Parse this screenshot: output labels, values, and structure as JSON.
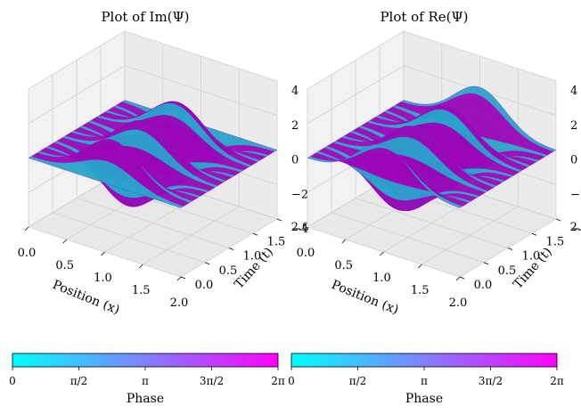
{
  "colors": {
    "colormap_start": "#00ffff",
    "colormap_mid": "#8080ff",
    "colormap_end": "#ff00ff",
    "surface_main": "#9a06b8",
    "surface_edge": "#2aa3cc",
    "pane": "#f2f2f2",
    "grid": "#d0d0d0"
  },
  "plots": [
    {
      "title": "Plot of Im(Ψ)",
      "xlabel": "Position (x)",
      "ylabel": "Time (t)",
      "xticks": [
        "0.0",
        "0.5",
        "1.0",
        "1.5",
        "2.0"
      ],
      "yticks": [
        "0.0",
        "0.5",
        "1.0",
        "1.5",
        "2.0"
      ],
      "zticks": [
        "4",
        "2",
        "0",
        "−2",
        "−4"
      ],
      "colorbar": {
        "label": "Phase",
        "ticks": [
          "0",
          "π/2",
          "π",
          "3π/2",
          "2π"
        ]
      }
    },
    {
      "title": "Plot of Re(Ψ)",
      "xlabel": "Position (x)",
      "ylabel": "Time (t)",
      "xticks": [
        "0.0",
        "0.5",
        "1.0",
        "1.5",
        "2.0"
      ],
      "yticks": [
        "0.0",
        "0.5",
        "1.0",
        "1.5",
        "2.0"
      ],
      "zticks": [
        "4",
        "2",
        "0",
        "−2",
        "−4"
      ],
      "colorbar": {
        "label": "Phase",
        "ticks": [
          "0",
          "π/2",
          "π",
          "3π/2",
          "2π"
        ]
      }
    }
  ],
  "chart_data": [
    {
      "type": "surface3d",
      "title": "Plot of Im(Ψ)",
      "xlabel": "Position (x)",
      "ylabel": "Time (t)",
      "xlim": [
        0,
        2
      ],
      "ylim": [
        0,
        2
      ],
      "zlim": [
        -4,
        4
      ],
      "color_by": "Phase",
      "color_range": [
        0,
        6.283
      ],
      "surface_peaks": [
        4,
        -4
      ]
    },
    {
      "type": "surface3d",
      "title": "Plot of Re(Ψ)",
      "xlabel": "Position (x)",
      "ylabel": "Time (t)",
      "xlim": [
        0,
        2
      ],
      "ylim": [
        0,
        2
      ],
      "zlim": [
        -4,
        4
      ],
      "color_by": "Phase",
      "color_range": [
        0,
        6.283
      ],
      "surface_peaks": [
        4,
        -4
      ]
    }
  ]
}
